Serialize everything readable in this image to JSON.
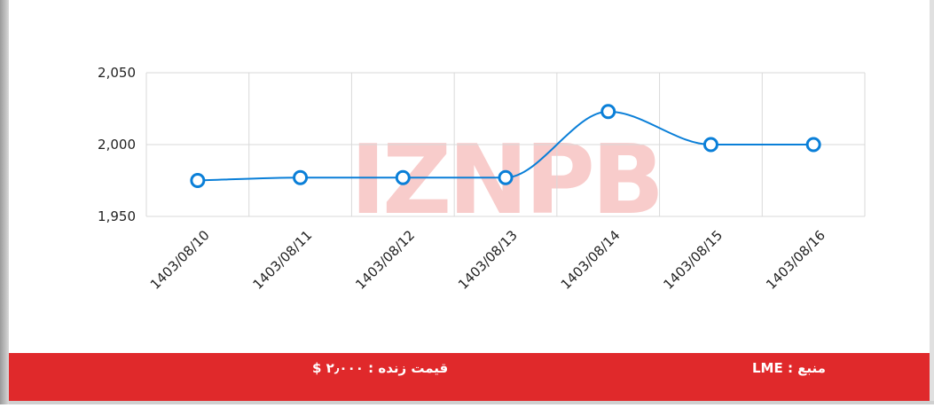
{
  "chart_data": {
    "type": "line",
    "watermark": "IZNPB",
    "categories": [
      "1403/08/10",
      "1403/08/11",
      "1403/08/12",
      "1403/08/13",
      "1403/08/14",
      "1403/08/15",
      "1403/08/16"
    ],
    "values": [
      1975,
      1977,
      1977,
      1977,
      2023,
      2000,
      2000
    ],
    "color": "#0a7fd8",
    "ylim": [
      1950,
      2050
    ],
    "yticks": [
      {
        "value": 1950,
        "label": "1,950"
      },
      {
        "value": 2000,
        "label": "2,000"
      },
      {
        "value": 2050,
        "label": "2,050"
      }
    ],
    "grid": true
  },
  "footer": {
    "source": "منبع : LME",
    "live_price": "قیمت زنده : ۲٫۰۰۰ $"
  }
}
